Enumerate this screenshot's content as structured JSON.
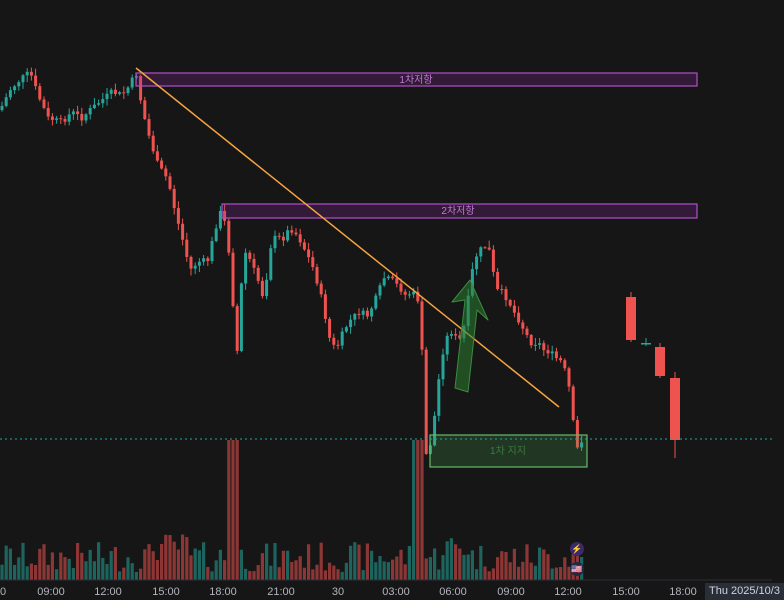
{
  "chart_data": {
    "type": "candlestick",
    "colors": {
      "background": "#161616",
      "up": "#26a69a",
      "down": "#ef5350",
      "resistance_zone": "#9c27b0",
      "support_zone": "#4caf50",
      "trendline": "#f7a440",
      "arrow": "#2e7d32",
      "current_price_line": "#26a69a"
    },
    "x_ticks": [
      "0",
      "09:00",
      "12:00",
      "15:00",
      "18:00",
      "21:00",
      "30",
      "03:00",
      "06:00",
      "09:00",
      "12:00",
      "15:00",
      "18:00"
    ],
    "date_label": "Thu 2025/10/3",
    "zones": [
      {
        "label": "1차저항",
        "kind": "resistance"
      },
      {
        "label": "2차저항",
        "kind": "resistance"
      },
      {
        "label": "1차 지지",
        "kind": "support"
      }
    ],
    "grid": false,
    "legend": "none"
  },
  "badges": {
    "lightning_icon": "⚡",
    "flag_icon": "🇺🇸"
  }
}
